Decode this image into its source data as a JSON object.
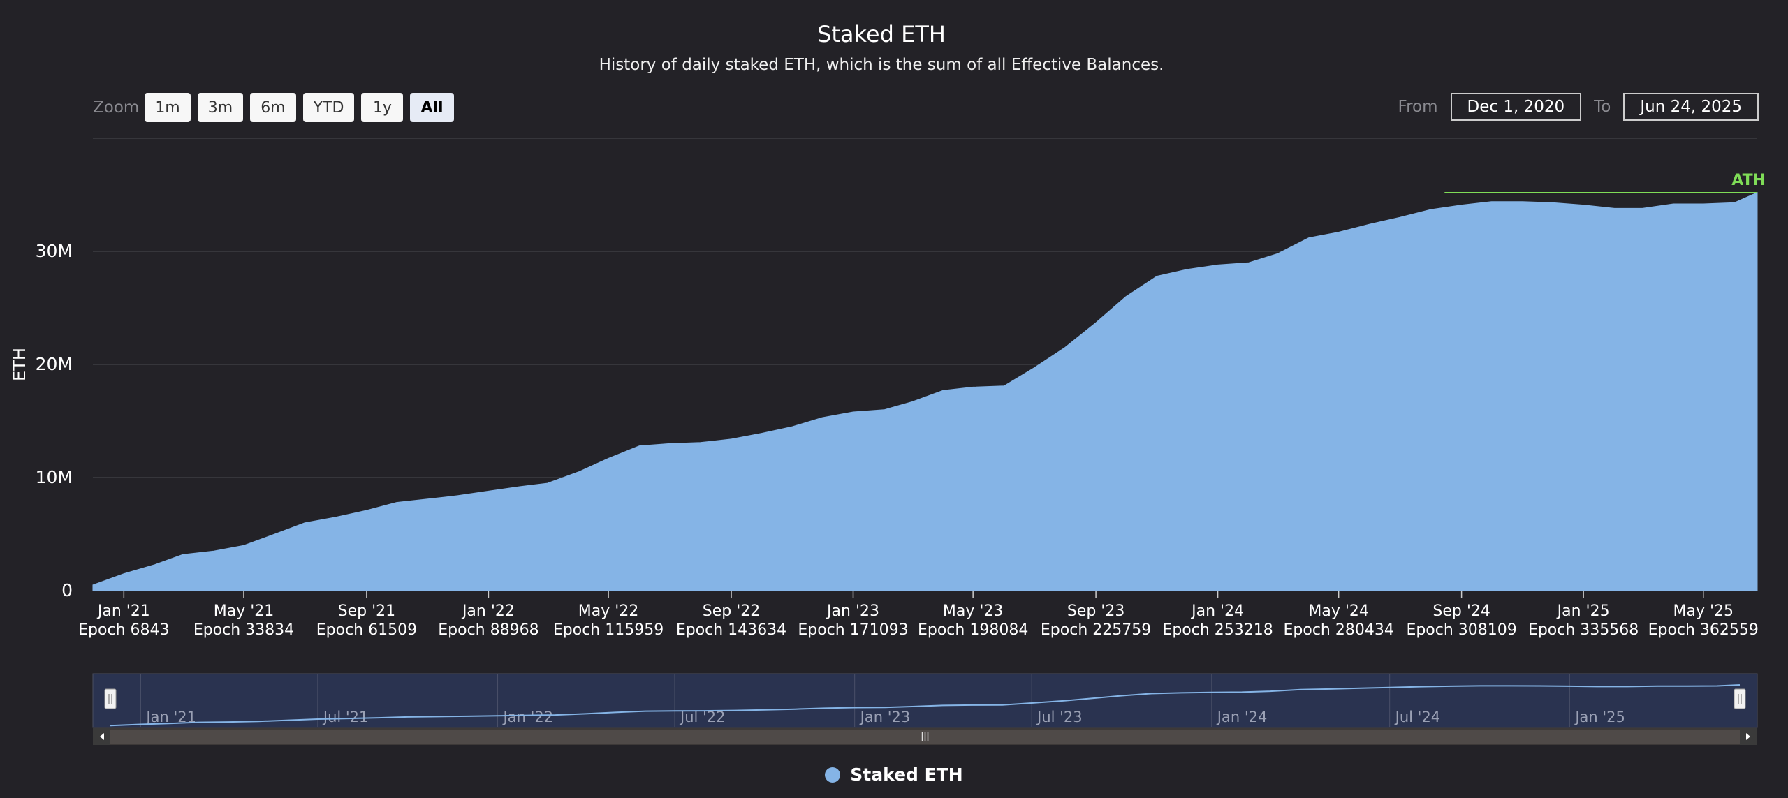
{
  "title": "Staked ETH",
  "subtitle": "History of daily staked ETH, which is the sum of all Effective Balances.",
  "zoom": {
    "label": "Zoom",
    "buttons": [
      "1m",
      "3m",
      "6m",
      "YTD",
      "1y",
      "All"
    ],
    "active": "All"
  },
  "range": {
    "from_label": "From",
    "from_value": "Dec 1, 2020",
    "to_label": "To",
    "to_value": "Jun 24, 2025"
  },
  "ath_label": "ATH",
  "legend": {
    "label": "Staked ETH",
    "color": "#85b4e6"
  },
  "navigator_labels": [
    "Jan '21",
    "Jul '21",
    "Jan '22",
    "Jul '22",
    "Jan '23",
    "Jul '23",
    "Jan '24",
    "Jul '24",
    "Jan '25"
  ],
  "chart_data": {
    "type": "area",
    "title": "Staked ETH",
    "ylabel": "ETH",
    "ylim": [
      0,
      40000000
    ],
    "y_ticks": [
      "0",
      "10M",
      "20M",
      "30M"
    ],
    "y_tick_values": [
      0,
      10000000,
      20000000,
      30000000
    ],
    "x_ticks": [
      {
        "date": "Jan '21",
        "epoch": "Epoch 6843"
      },
      {
        "date": "May '21",
        "epoch": "Epoch 33834"
      },
      {
        "date": "Sep '21",
        "epoch": "Epoch 61509"
      },
      {
        "date": "Jan '22",
        "epoch": "Epoch 88968"
      },
      {
        "date": "May '22",
        "epoch": "Epoch 115959"
      },
      {
        "date": "Sep '22",
        "epoch": "Epoch 143634"
      },
      {
        "date": "Jan '23",
        "epoch": "Epoch 171093"
      },
      {
        "date": "May '23",
        "epoch": "Epoch 198084"
      },
      {
        "date": "Sep '23",
        "epoch": "Epoch 225759"
      },
      {
        "date": "Jan '24",
        "epoch": "Epoch 253218"
      },
      {
        "date": "May '24",
        "epoch": "Epoch 280434"
      },
      {
        "date": "Sep '24",
        "epoch": "Epoch 308109"
      },
      {
        "date": "Jan '25",
        "epoch": "Epoch 335568"
      },
      {
        "date": "May '25",
        "epoch": "Epoch 362559"
      }
    ],
    "series": [
      {
        "name": "Staked ETH",
        "color": "#85b4e6",
        "x": [
          "2020-12-01",
          "2021-01-01",
          "2021-02-01",
          "2021-03-01",
          "2021-04-01",
          "2021-05-01",
          "2021-06-01",
          "2021-07-01",
          "2021-08-01",
          "2021-09-01",
          "2021-10-01",
          "2021-11-01",
          "2021-12-01",
          "2022-01-01",
          "2022-02-01",
          "2022-03-01",
          "2022-04-01",
          "2022-05-01",
          "2022-06-01",
          "2022-07-01",
          "2022-08-01",
          "2022-09-01",
          "2022-10-01",
          "2022-11-01",
          "2022-12-01",
          "2023-01-01",
          "2023-02-01",
          "2023-03-01",
          "2023-04-01",
          "2023-05-01",
          "2023-06-01",
          "2023-07-01",
          "2023-08-01",
          "2023-09-01",
          "2023-10-01",
          "2023-11-01",
          "2023-12-01",
          "2024-01-01",
          "2024-02-01",
          "2024-03-01",
          "2024-04-01",
          "2024-05-01",
          "2024-06-01",
          "2024-07-01",
          "2024-08-01",
          "2024-09-01",
          "2024-10-01",
          "2024-11-01",
          "2024-12-01",
          "2025-01-01",
          "2025-02-01",
          "2025-03-01",
          "2025-04-01",
          "2025-05-01",
          "2025-06-01",
          "2025-06-24"
        ],
        "values": [
          500000,
          1500000,
          2300000,
          3200000,
          3500000,
          4000000,
          5000000,
          6000000,
          6500000,
          7100000,
          7800000,
          8100000,
          8400000,
          8800000,
          9200000,
          9500000,
          10500000,
          11700000,
          12800000,
          13000000,
          13100000,
          13400000,
          13900000,
          14500000,
          15300000,
          15800000,
          16000000,
          16700000,
          17700000,
          18000000,
          18100000,
          19700000,
          21500000,
          23700000,
          26000000,
          27800000,
          28400000,
          28800000,
          29000000,
          29800000,
          31200000,
          31700000,
          32400000,
          33000000,
          33700000,
          34100000,
          34400000,
          34400000,
          34300000,
          34100000,
          33800000,
          33800000,
          34200000,
          34200000,
          34300000,
          35200000
        ]
      }
    ],
    "ath_value": 35200000,
    "grid": true,
    "legend_position": "bottom-center"
  }
}
